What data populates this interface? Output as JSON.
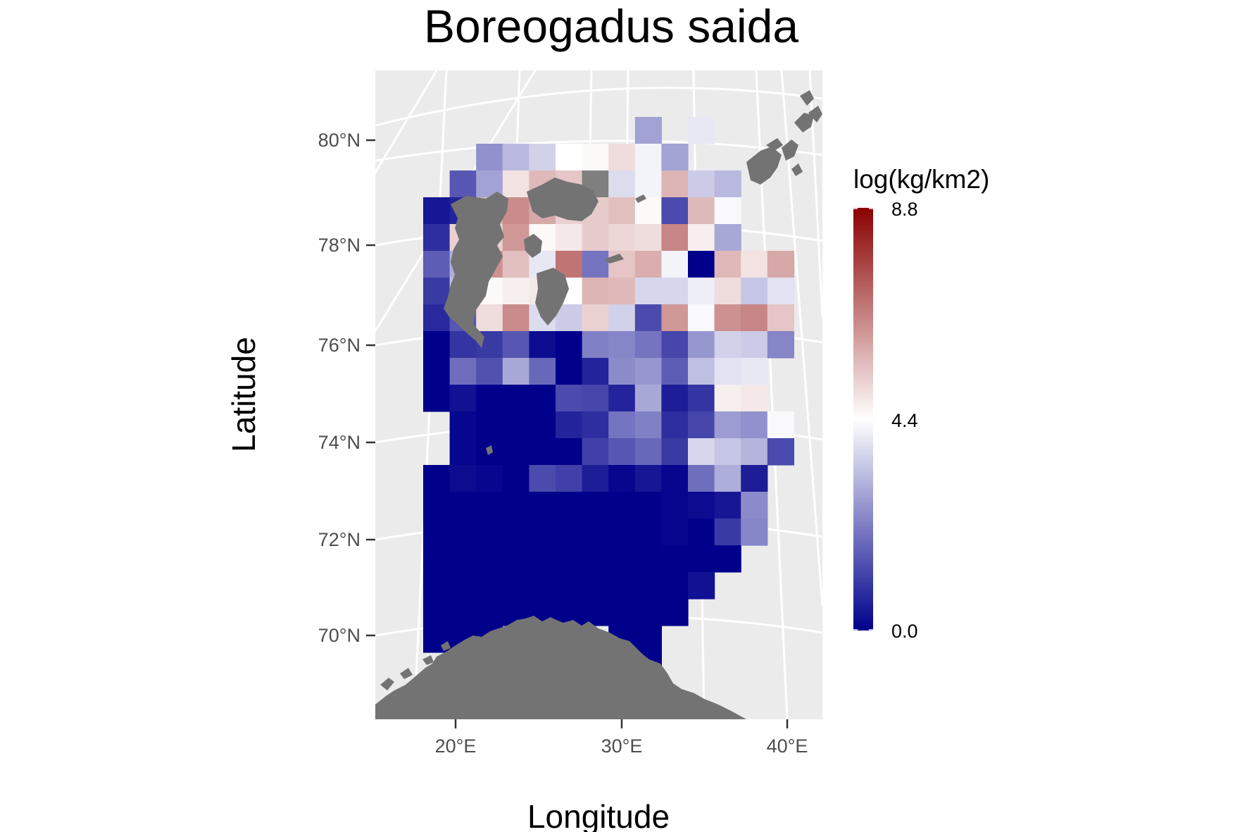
{
  "map": {
    "title": "Boreogadus saida",
    "x_axis_label": "Longitude",
    "y_axis_label": "Latitude",
    "lat_ticks": [
      "80°N",
      "78°N",
      "76°N",
      "74°N",
      "72°N",
      "70°N"
    ],
    "lon_ticks": [
      "20°E",
      "30°E",
      "40°E"
    ]
  },
  "legend": {
    "title": "log(kg/km2)",
    "max_label": "8.8",
    "mid_label": "4.4",
    "min_label": "0.0",
    "color_low": "#00008B",
    "color_mid": "#FFFFFF",
    "color_high": "#8B0000",
    "value_min": 0.0,
    "value_mid": 4.4,
    "value_max": 8.8
  },
  "colors": {
    "panel_bg": "#EBEBEB",
    "graticule": "#FFFFFF",
    "land": "#737373",
    "no_data": "#7F7F7F"
  },
  "chart_data": {
    "type": "heatmap",
    "title": "Boreogadus saida",
    "xlabel": "Longitude",
    "ylabel": "Latitude",
    "legend_title": "log(kg/km2)",
    "value_range": [
      0.0,
      8.8
    ],
    "columns": [
      "c0",
      "c1",
      "c2",
      "c3",
      "c4",
      "c5",
      "c6",
      "c7",
      "c8",
      "c9",
      "c10",
      "c11",
      "c12",
      "c13"
    ],
    "rows": [
      {
        "row": 0,
        "values": [
          null,
          null,
          null,
          null,
          null,
          null,
          null,
          null,
          2.8,
          null,
          4.0,
          null,
          null,
          null
        ]
      },
      {
        "row": 1,
        "values": [
          null,
          null,
          2.5,
          3.2,
          3.6,
          4.4,
          4.5,
          5.0,
          4.2,
          2.8,
          null,
          null,
          null,
          null
        ]
      },
      {
        "row": 2,
        "values": [
          null,
          1.5,
          2.8,
          4.9,
          5.6,
          5.4,
          "nodata",
          3.8,
          4.2,
          5.7,
          3.5,
          3.2,
          null,
          null
        ]
      },
      {
        "row": 3,
        "values": [
          0.4,
          0.6,
          5.7,
          6.4,
          5.9,
          5.2,
          5.3,
          5.5,
          4.5,
          1.3,
          5.6,
          4.3,
          null,
          null
        ]
      },
      {
        "row": 4,
        "values": [
          0.8,
          5.2,
          5.2,
          6.2,
          4.5,
          4.8,
          5.3,
          5.1,
          5.0,
          6.5,
          4.7,
          2.9,
          null,
          null
        ]
      },
      {
        "row": 5,
        "values": [
          1.6,
          3.0,
          6.3,
          5.5,
          4.0,
          6.8,
          2.0,
          5.4,
          5.8,
          4.2,
          0.0,
          5.6,
          4.9,
          5.9
        ]
      },
      {
        "row": 6,
        "values": [
          1.0,
          3.3,
          4.5,
          4.7,
          4.8,
          4.4,
          5.7,
          5.6,
          3.7,
          3.7,
          4.1,
          5.0,
          3.4,
          3.9
        ]
      },
      {
        "row": 7,
        "values": [
          0.7,
          1.5,
          5.0,
          6.4,
          3.8,
          3.5,
          5.2,
          3.6,
          1.3,
          6.2,
          4.3,
          6.3,
          6.5,
          5.4
        ]
      },
      {
        "row": 8,
        "values": [
          0.0,
          0.9,
          1.0,
          1.5,
          0.2,
          0.0,
          2.2,
          2.3,
          2.0,
          1.2,
          2.6,
          3.6,
          3.5,
          2.3
        ]
      },
      {
        "row": 9,
        "values": [
          0.0,
          1.9,
          1.4,
          2.9,
          1.8,
          0.0,
          0.6,
          2.4,
          2.6,
          1.6,
          3.3,
          3.9,
          4.0,
          null
        ]
      },
      {
        "row": 10,
        "values": [
          0.0,
          0.3,
          0.0,
          0.0,
          0.0,
          1.3,
          1.2,
          0.6,
          2.9,
          0.5,
          0.9,
          4.7,
          4.8,
          null
        ]
      },
      {
        "row": 11,
        "values": [
          null,
          0.1,
          0.0,
          0.0,
          0.0,
          0.6,
          0.8,
          2.0,
          2.2,
          0.8,
          1.2,
          2.7,
          2.5,
          4.3
        ]
      },
      {
        "row": 12,
        "values": [
          null,
          0.1,
          0.0,
          0.0,
          0.0,
          0.0,
          1.1,
          1.5,
          1.8,
          1.0,
          3.7,
          3.4,
          3.1,
          1.3
        ]
      },
      {
        "row": 13,
        "values": [
          0.0,
          0.2,
          0.1,
          0.0,
          1.3,
          1.1,
          0.5,
          0.1,
          0.4,
          0.1,
          1.9,
          3.0,
          0.5,
          null
        ]
      },
      {
        "row": 14,
        "values": [
          0.0,
          0.0,
          0.0,
          0.0,
          0.0,
          0.0,
          0.0,
          0.0,
          0.0,
          0.1,
          0.2,
          0.4,
          2.4,
          null
        ]
      },
      {
        "row": 15,
        "values": [
          0.0,
          0.0,
          0.0,
          0.0,
          0.0,
          0.0,
          0.0,
          0.0,
          0.0,
          0.1,
          0.0,
          1.0,
          2.3,
          null
        ]
      },
      {
        "row": 16,
        "values": [
          0.0,
          0.0,
          0.0,
          0.0,
          0.0,
          0.0,
          0.0,
          0.0,
          0.0,
          0.0,
          0.0,
          0.0,
          null,
          null
        ]
      },
      {
        "row": 17,
        "values": [
          0.0,
          0.0,
          0.0,
          0.0,
          0.0,
          0.0,
          0.0,
          0.0,
          0.0,
          0.0,
          0.3,
          null,
          null,
          null
        ]
      },
      {
        "row": 18,
        "values": [
          0.0,
          0.0,
          0.0,
          0.0,
          0.0,
          0.0,
          0.0,
          0.0,
          0.0,
          0.0,
          null,
          null,
          null,
          null
        ]
      },
      {
        "row": 19,
        "values": [
          0.0,
          0.0,
          0.0,
          null,
          null,
          null,
          null,
          0.0,
          0.0,
          null,
          null,
          null,
          null,
          null
        ]
      },
      {
        "row": 20,
        "values": [
          null,
          null,
          null,
          null,
          null,
          null,
          null,
          null,
          0.0,
          null,
          null,
          null,
          null,
          null
        ]
      }
    ]
  }
}
